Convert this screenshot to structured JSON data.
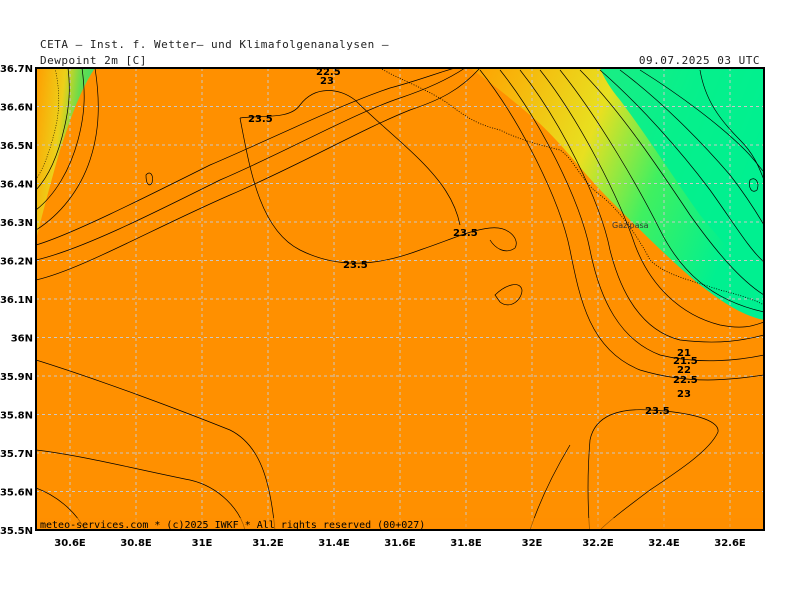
{
  "header": {
    "source": "CETA — Inst. f. Wetter— und Klimafolgenanalysen —",
    "variable": "Dewpoint 2m [C]",
    "valid_time": "09.07.2025 03 UTC"
  },
  "footer": {
    "credit": "meteo-services.com * (c)2025 IWKF * All rights reserved (00+027)"
  },
  "axes": {
    "lat_ticks": [
      "36.7N",
      "36.6N",
      "36.5N",
      "36.4N",
      "36.3N",
      "36.2N",
      "36.1N",
      "36N",
      "35.9N",
      "35.8N",
      "35.7N",
      "35.6N",
      "35.5N"
    ],
    "lon_ticks": [
      "30.6E",
      "30.8E",
      "31E",
      "31.2E",
      "31.4E",
      "31.6E",
      "31.8E",
      "32E",
      "32.2E",
      "32.4E",
      "32.6E"
    ]
  },
  "place_labels": [
    "Gazipasa"
  ],
  "contour_labels": [
    "22.5",
    "23",
    "23.5",
    "23.5",
    "23.5",
    "23.5",
    "21",
    "21.5",
    "22",
    "22.5",
    "23",
    "23.5"
  ],
  "colors": {
    "base_fill": "#ff9000",
    "gradient_yellow": "#f0f020",
    "gradient_green": "#00f090",
    "grid": "#c8c8c8",
    "contour": "#000000"
  }
}
